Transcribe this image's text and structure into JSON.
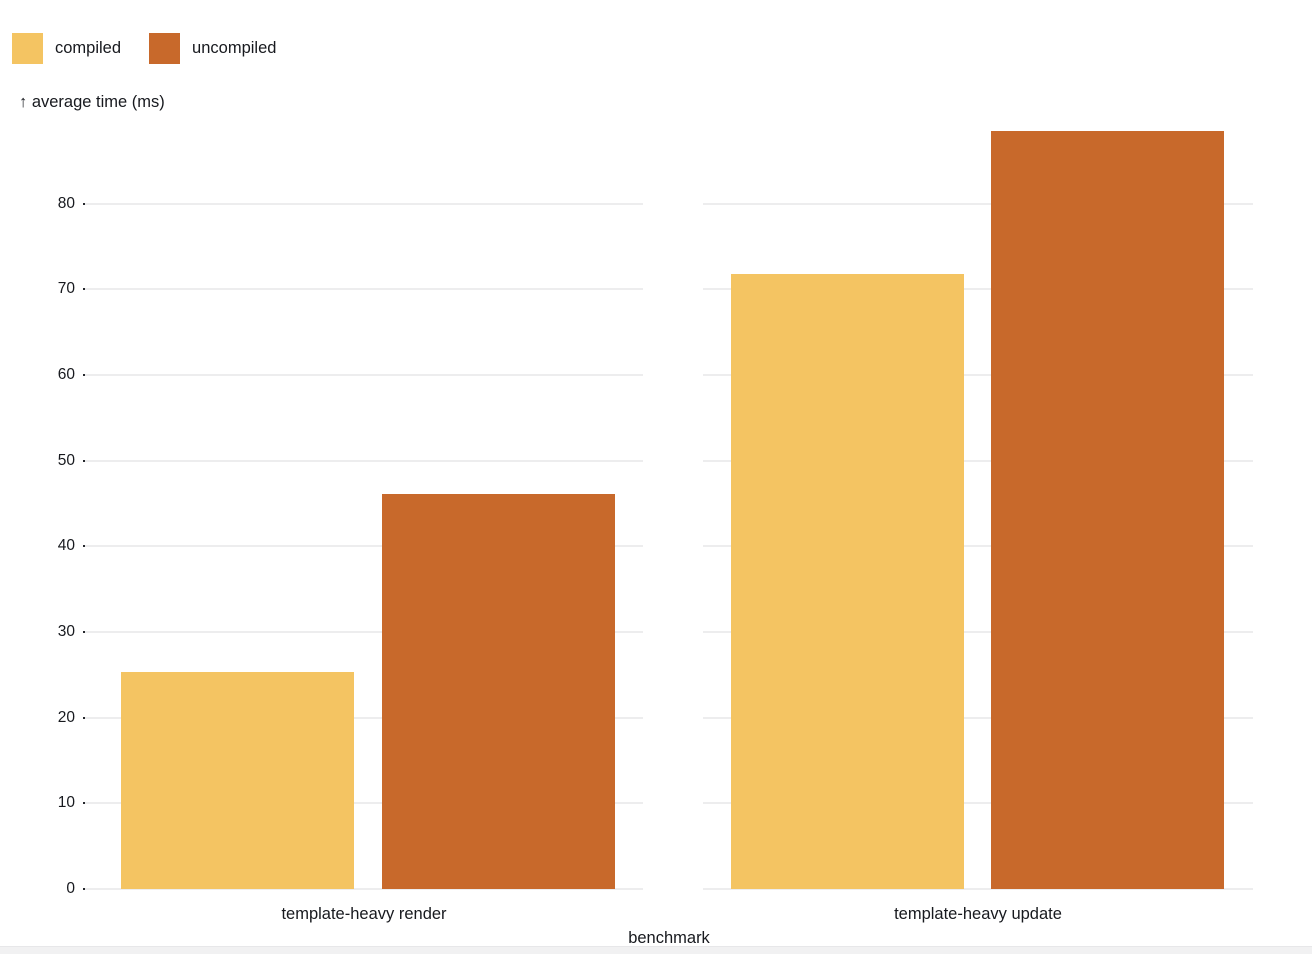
{
  "legend": {
    "items": [
      {
        "label": "compiled",
        "color": "#f4c462"
      },
      {
        "label": "uncompiled",
        "color": "#c8692b"
      }
    ]
  },
  "y_axis": {
    "title": "↑ average time (ms)",
    "ticks": [
      0,
      10,
      20,
      30,
      40,
      50,
      60,
      70,
      80
    ]
  },
  "x_axis": {
    "title": "benchmark"
  },
  "chart_data": {
    "type": "bar",
    "title": "",
    "categories": [
      "template-heavy render",
      "template-heavy update"
    ],
    "series": [
      {
        "name": "compiled",
        "color": "#f4c462",
        "values": [
          25.3,
          71.8
        ]
      },
      {
        "name": "uncompiled",
        "color": "#c8692b",
        "values": [
          46.1,
          88.5
        ]
      }
    ],
    "xlabel": "benchmark",
    "ylabel": "average time (ms)",
    "ylim": [
      0,
      88.5
    ],
    "yticks": [
      0,
      10,
      20,
      30,
      40,
      50,
      60,
      70,
      80
    ],
    "grid": true,
    "legend_position": "top-left"
  }
}
